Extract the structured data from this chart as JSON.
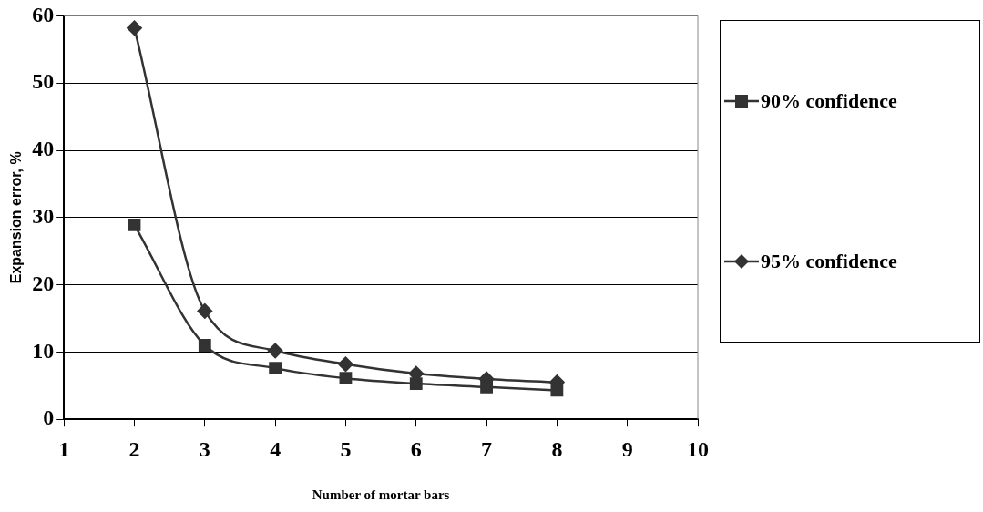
{
  "chart_data": {
    "type": "line",
    "xlabel": "Number of mortar bars",
    "ylabel": "Expansion error, %",
    "x": [
      2,
      3,
      4,
      5,
      6,
      7,
      8
    ],
    "series": [
      {
        "name": "90% confidence",
        "color": "#333333",
        "marker": "square",
        "values": [
          28.9,
          11.0,
          7.6,
          6.1,
          5.3,
          4.8,
          4.3
        ]
      },
      {
        "name": "95% confidence",
        "color": "#333333",
        "marker": "diamond",
        "values": [
          58.2,
          16.1,
          10.2,
          8.2,
          6.8,
          6.0,
          5.5
        ]
      }
    ],
    "xlim": [
      1,
      10
    ],
    "xticks": [
      1,
      2,
      3,
      4,
      5,
      6,
      7,
      8,
      9,
      10
    ],
    "ylim": [
      0,
      60
    ],
    "yticks": [
      0,
      10,
      20,
      30,
      40,
      50,
      60
    ],
    "grid": "y",
    "legend": "right"
  }
}
